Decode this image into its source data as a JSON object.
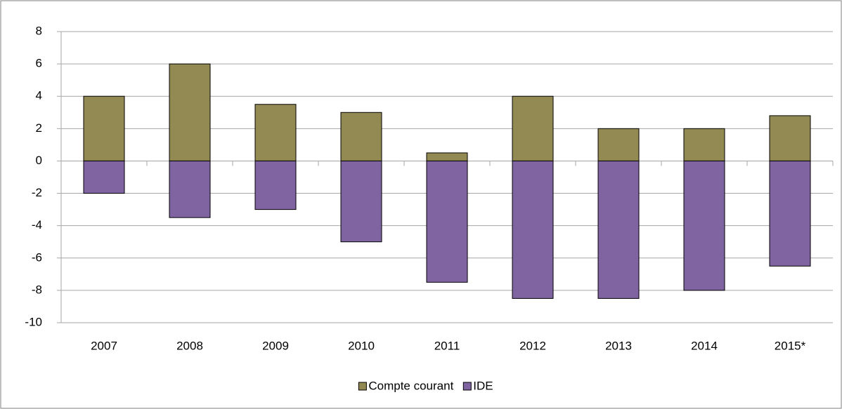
{
  "chart_data": {
    "type": "bar",
    "stacked": true,
    "categories": [
      "2007",
      "2008",
      "2009",
      "2010",
      "2011",
      "2012",
      "2013",
      "2014",
      "2015*"
    ],
    "series": [
      {
        "name": "Compte courant",
        "color": "#938953",
        "values": [
          4,
          6,
          3.5,
          3,
          0.5,
          4,
          2,
          2,
          2.8
        ]
      },
      {
        "name": "IDE",
        "color": "#8064a2",
        "values": [
          -2,
          -3.5,
          -3,
          -5,
          -7.5,
          -8.5,
          -8.5,
          -8,
          -6.5
        ]
      }
    ],
    "ylim": [
      -10,
      8
    ],
    "yticks": [
      -10,
      -8,
      -6,
      -4,
      -2,
      0,
      2,
      4,
      6,
      8
    ],
    "grid": true,
    "legend": "bottom"
  }
}
